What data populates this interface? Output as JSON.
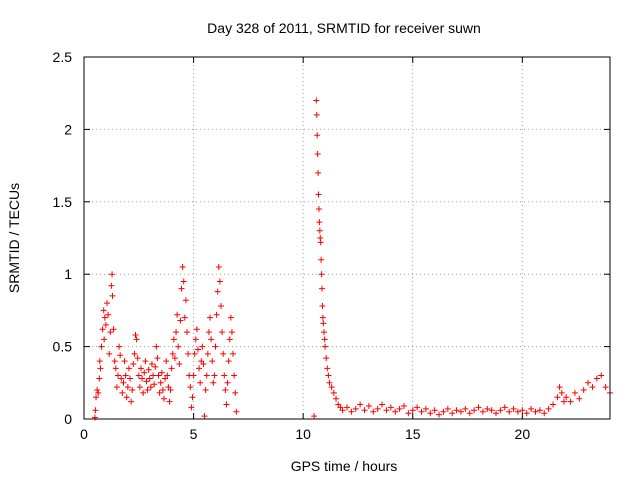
{
  "chart_data": {
    "type": "scatter",
    "title": "Day 328 of 2011, SRMTID for receiver suwn",
    "xlabel": "GPS time / hours",
    "ylabel": "SRMTID / TECUs",
    "xlim": [
      0,
      24
    ],
    "ylim": [
      0,
      2.5
    ],
    "x_ticks": [
      0,
      5,
      10,
      15,
      20
    ],
    "y_ticks": [
      0,
      0.5,
      1,
      1.5,
      2,
      2.5
    ],
    "x_tick_labels": [
      "0",
      "5",
      "10",
      "15",
      "20"
    ],
    "y_tick_labels": [
      "0",
      "0.5",
      "1",
      "1.5",
      "2",
      "2.5"
    ],
    "grid": true,
    "marker": "plus",
    "series": [
      {
        "name": "SRMTID",
        "color": "#ff0000",
        "points": [
          [
            0.5,
            0.01
          ],
          [
            0.52,
            0.06
          ],
          [
            0.55,
            0.15
          ],
          [
            0.6,
            0.2
          ],
          [
            0.65,
            0.18
          ],
          [
            0.7,
            0.28
          ],
          [
            0.72,
            0.4
          ],
          [
            0.75,
            0.35
          ],
          [
            0.8,
            0.5
          ],
          [
            0.85,
            0.62
          ],
          [
            0.9,
            0.75
          ],
          [
            0.92,
            0.55
          ],
          [
            0.95,
            0.7
          ],
          [
            1.0,
            0.65
          ],
          [
            1.05,
            0.8
          ],
          [
            1.1,
            0.72
          ],
          [
            1.15,
            0.45
          ],
          [
            1.2,
            0.6
          ],
          [
            1.25,
            0.92
          ],
          [
            1.28,
            1.0
          ],
          [
            1.3,
            0.85
          ],
          [
            1.35,
            0.62
          ],
          [
            1.4,
            0.4
          ],
          [
            1.45,
            0.35
          ],
          [
            1.5,
            0.22
          ],
          [
            1.55,
            0.3
          ],
          [
            1.6,
            0.5
          ],
          [
            1.65,
            0.44
          ],
          [
            1.7,
            0.28
          ],
          [
            1.75,
            0.18
          ],
          [
            1.8,
            0.25
          ],
          [
            1.85,
            0.4
          ],
          [
            1.9,
            0.3
          ],
          [
            1.95,
            0.15
          ],
          [
            2.0,
            0.22
          ],
          [
            2.05,
            0.35
          ],
          [
            2.1,
            0.28
          ],
          [
            2.15,
            0.12
          ],
          [
            2.2,
            0.2
          ],
          [
            2.25,
            0.38
          ],
          [
            2.3,
            0.45
          ],
          [
            2.35,
            0.58
          ],
          [
            2.4,
            0.55
          ],
          [
            2.45,
            0.42
          ],
          [
            2.5,
            0.3
          ],
          [
            2.55,
            0.22
          ],
          [
            2.6,
            0.35
          ],
          [
            2.65,
            0.28
          ],
          [
            2.7,
            0.18
          ],
          [
            2.75,
            0.32
          ],
          [
            2.8,
            0.4
          ],
          [
            2.85,
            0.26
          ],
          [
            2.9,
            0.2
          ],
          [
            2.95,
            0.34
          ],
          [
            3.0,
            0.28
          ],
          [
            3.05,
            0.22
          ],
          [
            3.1,
            0.38
          ],
          [
            3.15,
            0.3
          ],
          [
            3.2,
            0.24
          ],
          [
            3.25,
            0.36
          ],
          [
            3.3,
            0.5
          ],
          [
            3.35,
            0.42
          ],
          [
            3.4,
            0.3
          ],
          [
            3.45,
            0.18
          ],
          [
            3.5,
            0.25
          ],
          [
            3.55,
            0.32
          ],
          [
            3.6,
            0.2
          ],
          [
            3.65,
            0.14
          ],
          [
            3.7,
            0.28
          ],
          [
            3.75,
            0.4
          ],
          [
            3.8,
            0.3
          ],
          [
            3.85,
            0.22
          ],
          [
            3.9,
            0.12
          ],
          [
            3.95,
            0.2
          ],
          [
            4.0,
            0.35
          ],
          [
            4.05,
            0.45
          ],
          [
            4.1,
            0.55
          ],
          [
            4.15,
            0.42
          ],
          [
            4.2,
            0.6
          ],
          [
            4.25,
            0.72
          ],
          [
            4.3,
            0.5
          ],
          [
            4.35,
            0.38
          ],
          [
            4.4,
            0.68
          ],
          [
            4.45,
            0.9
          ],
          [
            4.5,
            1.05
          ],
          [
            4.55,
            0.95
          ],
          [
            4.6,
            0.7
          ],
          [
            4.65,
            0.82
          ],
          [
            4.7,
            0.6
          ],
          [
            4.75,
            0.45
          ],
          [
            4.8,
            0.3
          ],
          [
            4.85,
            0.22
          ],
          [
            4.9,
            0.08
          ],
          [
            4.95,
            0.15
          ],
          [
            5.0,
            0.3
          ],
          [
            5.05,
            0.45
          ],
          [
            5.1,
            0.55
          ],
          [
            5.15,
            0.62
          ],
          [
            5.2,
            0.48
          ],
          [
            5.25,
            0.35
          ],
          [
            5.3,
            0.25
          ],
          [
            5.35,
            0.4
          ],
          [
            5.4,
            0.5
          ],
          [
            5.45,
            0.38
          ],
          [
            5.5,
            0.02
          ],
          [
            5.55,
            0.2
          ],
          [
            5.6,
            0.3
          ],
          [
            5.65,
            0.45
          ],
          [
            5.7,
            0.6
          ],
          [
            5.75,
            0.7
          ],
          [
            5.8,
            0.55
          ],
          [
            5.85,
            0.4
          ],
          [
            5.9,
            0.25
          ],
          [
            5.95,
            0.3
          ],
          [
            6.0,
            0.5
          ],
          [
            6.05,
            0.72
          ],
          [
            6.1,
            0.88
          ],
          [
            6.15,
            1.05
          ],
          [
            6.2,
            0.95
          ],
          [
            6.25,
            0.78
          ],
          [
            6.3,
            0.6
          ],
          [
            6.35,
            0.45
          ],
          [
            6.4,
            0.3
          ],
          [
            6.45,
            0.2
          ],
          [
            6.5,
            0.1
          ],
          [
            6.55,
            0.25
          ],
          [
            6.6,
            0.4
          ],
          [
            6.65,
            0.55
          ],
          [
            6.7,
            0.7
          ],
          [
            6.75,
            0.6
          ],
          [
            6.8,
            0.45
          ],
          [
            6.85,
            0.3
          ],
          [
            6.9,
            0.18
          ],
          [
            6.95,
            0.05
          ],
          [
            10.5,
            0.02
          ],
          [
            10.6,
            2.2
          ],
          [
            10.62,
            2.1
          ],
          [
            10.64,
            1.96
          ],
          [
            10.66,
            1.83
          ],
          [
            10.68,
            1.7
          ],
          [
            10.7,
            1.55
          ],
          [
            10.72,
            1.45
          ],
          [
            10.74,
            1.36
          ],
          [
            10.76,
            1.3
          ],
          [
            10.78,
            1.25
          ],
          [
            10.8,
            1.22
          ],
          [
            10.82,
            1.1
          ],
          [
            10.84,
            1.0
          ],
          [
            10.86,
            0.9
          ],
          [
            10.88,
            0.78
          ],
          [
            10.9,
            0.7
          ],
          [
            10.92,
            0.66
          ],
          [
            10.95,
            0.6
          ],
          [
            10.98,
            0.55
          ],
          [
            11.0,
            0.5
          ],
          [
            11.05,
            0.42
          ],
          [
            11.1,
            0.35
          ],
          [
            11.15,
            0.3
          ],
          [
            11.2,
            0.25
          ],
          [
            11.3,
            0.22
          ],
          [
            11.4,
            0.18
          ],
          [
            11.5,
            0.14
          ],
          [
            11.6,
            0.1
          ],
          [
            11.7,
            0.08
          ],
          [
            11.8,
            0.06
          ],
          [
            12.0,
            0.08
          ],
          [
            12.2,
            0.05
          ],
          [
            12.4,
            0.07
          ],
          [
            12.6,
            0.1
          ],
          [
            12.8,
            0.06
          ],
          [
            13.0,
            0.09
          ],
          [
            13.2,
            0.05
          ],
          [
            13.4,
            0.07
          ],
          [
            13.6,
            0.1
          ],
          [
            13.8,
            0.06
          ],
          [
            14.0,
            0.08
          ],
          [
            14.2,
            0.05
          ],
          [
            14.4,
            0.07
          ],
          [
            14.6,
            0.09
          ],
          [
            14.8,
            0.04
          ],
          [
            15.0,
            0.06
          ],
          [
            15.2,
            0.08
          ],
          [
            15.4,
            0.05
          ],
          [
            15.6,
            0.07
          ],
          [
            15.8,
            0.04
          ],
          [
            16.0,
            0.06
          ],
          [
            16.2,
            0.03
          ],
          [
            16.4,
            0.05
          ],
          [
            16.6,
            0.07
          ],
          [
            16.8,
            0.04
          ],
          [
            17.0,
            0.06
          ],
          [
            17.2,
            0.05
          ],
          [
            17.4,
            0.07
          ],
          [
            17.6,
            0.04
          ],
          [
            17.8,
            0.06
          ],
          [
            18.0,
            0.08
          ],
          [
            18.2,
            0.05
          ],
          [
            18.4,
            0.07
          ],
          [
            18.6,
            0.06
          ],
          [
            18.8,
            0.04
          ],
          [
            19.0,
            0.06
          ],
          [
            19.2,
            0.08
          ],
          [
            19.4,
            0.05
          ],
          [
            19.6,
            0.07
          ],
          [
            19.8,
            0.05
          ],
          [
            20.0,
            0.06
          ],
          [
            20.2,
            0.04
          ],
          [
            20.4,
            0.07
          ],
          [
            20.6,
            0.05
          ],
          [
            20.8,
            0.06
          ],
          [
            21.0,
            0.04
          ],
          [
            21.2,
            0.07
          ],
          [
            21.4,
            0.1
          ],
          [
            21.6,
            0.15
          ],
          [
            21.7,
            0.22
          ],
          [
            21.8,
            0.18
          ],
          [
            21.9,
            0.12
          ],
          [
            22.0,
            0.15
          ],
          [
            22.2,
            0.12
          ],
          [
            22.4,
            0.18
          ],
          [
            22.6,
            0.14
          ],
          [
            22.8,
            0.2
          ],
          [
            23.0,
            0.25
          ],
          [
            23.2,
            0.22
          ],
          [
            23.4,
            0.28
          ],
          [
            23.6,
            0.3
          ],
          [
            23.8,
            0.22
          ],
          [
            24.0,
            0.18
          ]
        ]
      }
    ]
  }
}
